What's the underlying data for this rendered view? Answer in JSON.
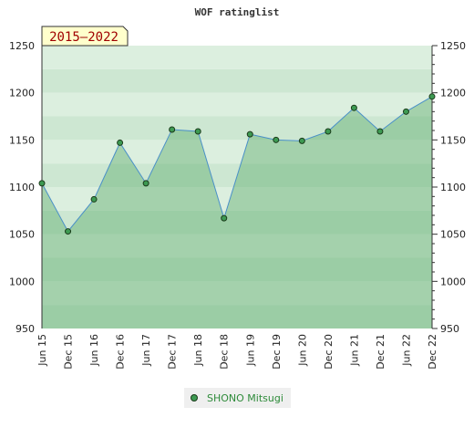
{
  "chart_data": {
    "type": "line",
    "title": "WOF ratinglist",
    "badge": "2015–2022",
    "categories": [
      "Jun 15",
      "Dec 15",
      "Jun 16",
      "Dec 16",
      "Jun 17",
      "Dec 17",
      "Jun 18",
      "Dec 18",
      "Jun 19",
      "Dec 19",
      "Jun 20",
      "Dec 20",
      "Jun 21",
      "Dec 21",
      "Jun 22",
      "Dec 22"
    ],
    "series": [
      {
        "name": "SHONO Mitsugi",
        "values": [
          1104,
          1053,
          1087,
          1147,
          1104,
          1161,
          1159,
          1067,
          1156,
          1150,
          1149,
          1159,
          1184,
          1159,
          1180,
          1196
        ]
      }
    ],
    "ylim": [
      950,
      1250
    ],
    "yticks": [
      950,
      1000,
      1050,
      1100,
      1150,
      1200,
      1250
    ],
    "grid": true,
    "legend_position": "bottom-center",
    "colors": {
      "line": "#4a90c8",
      "fill": "#6fbb7e",
      "marker": "#3d9a52",
      "bands_dark": "#7ac08d",
      "bands_light": "#eef7ef"
    }
  }
}
